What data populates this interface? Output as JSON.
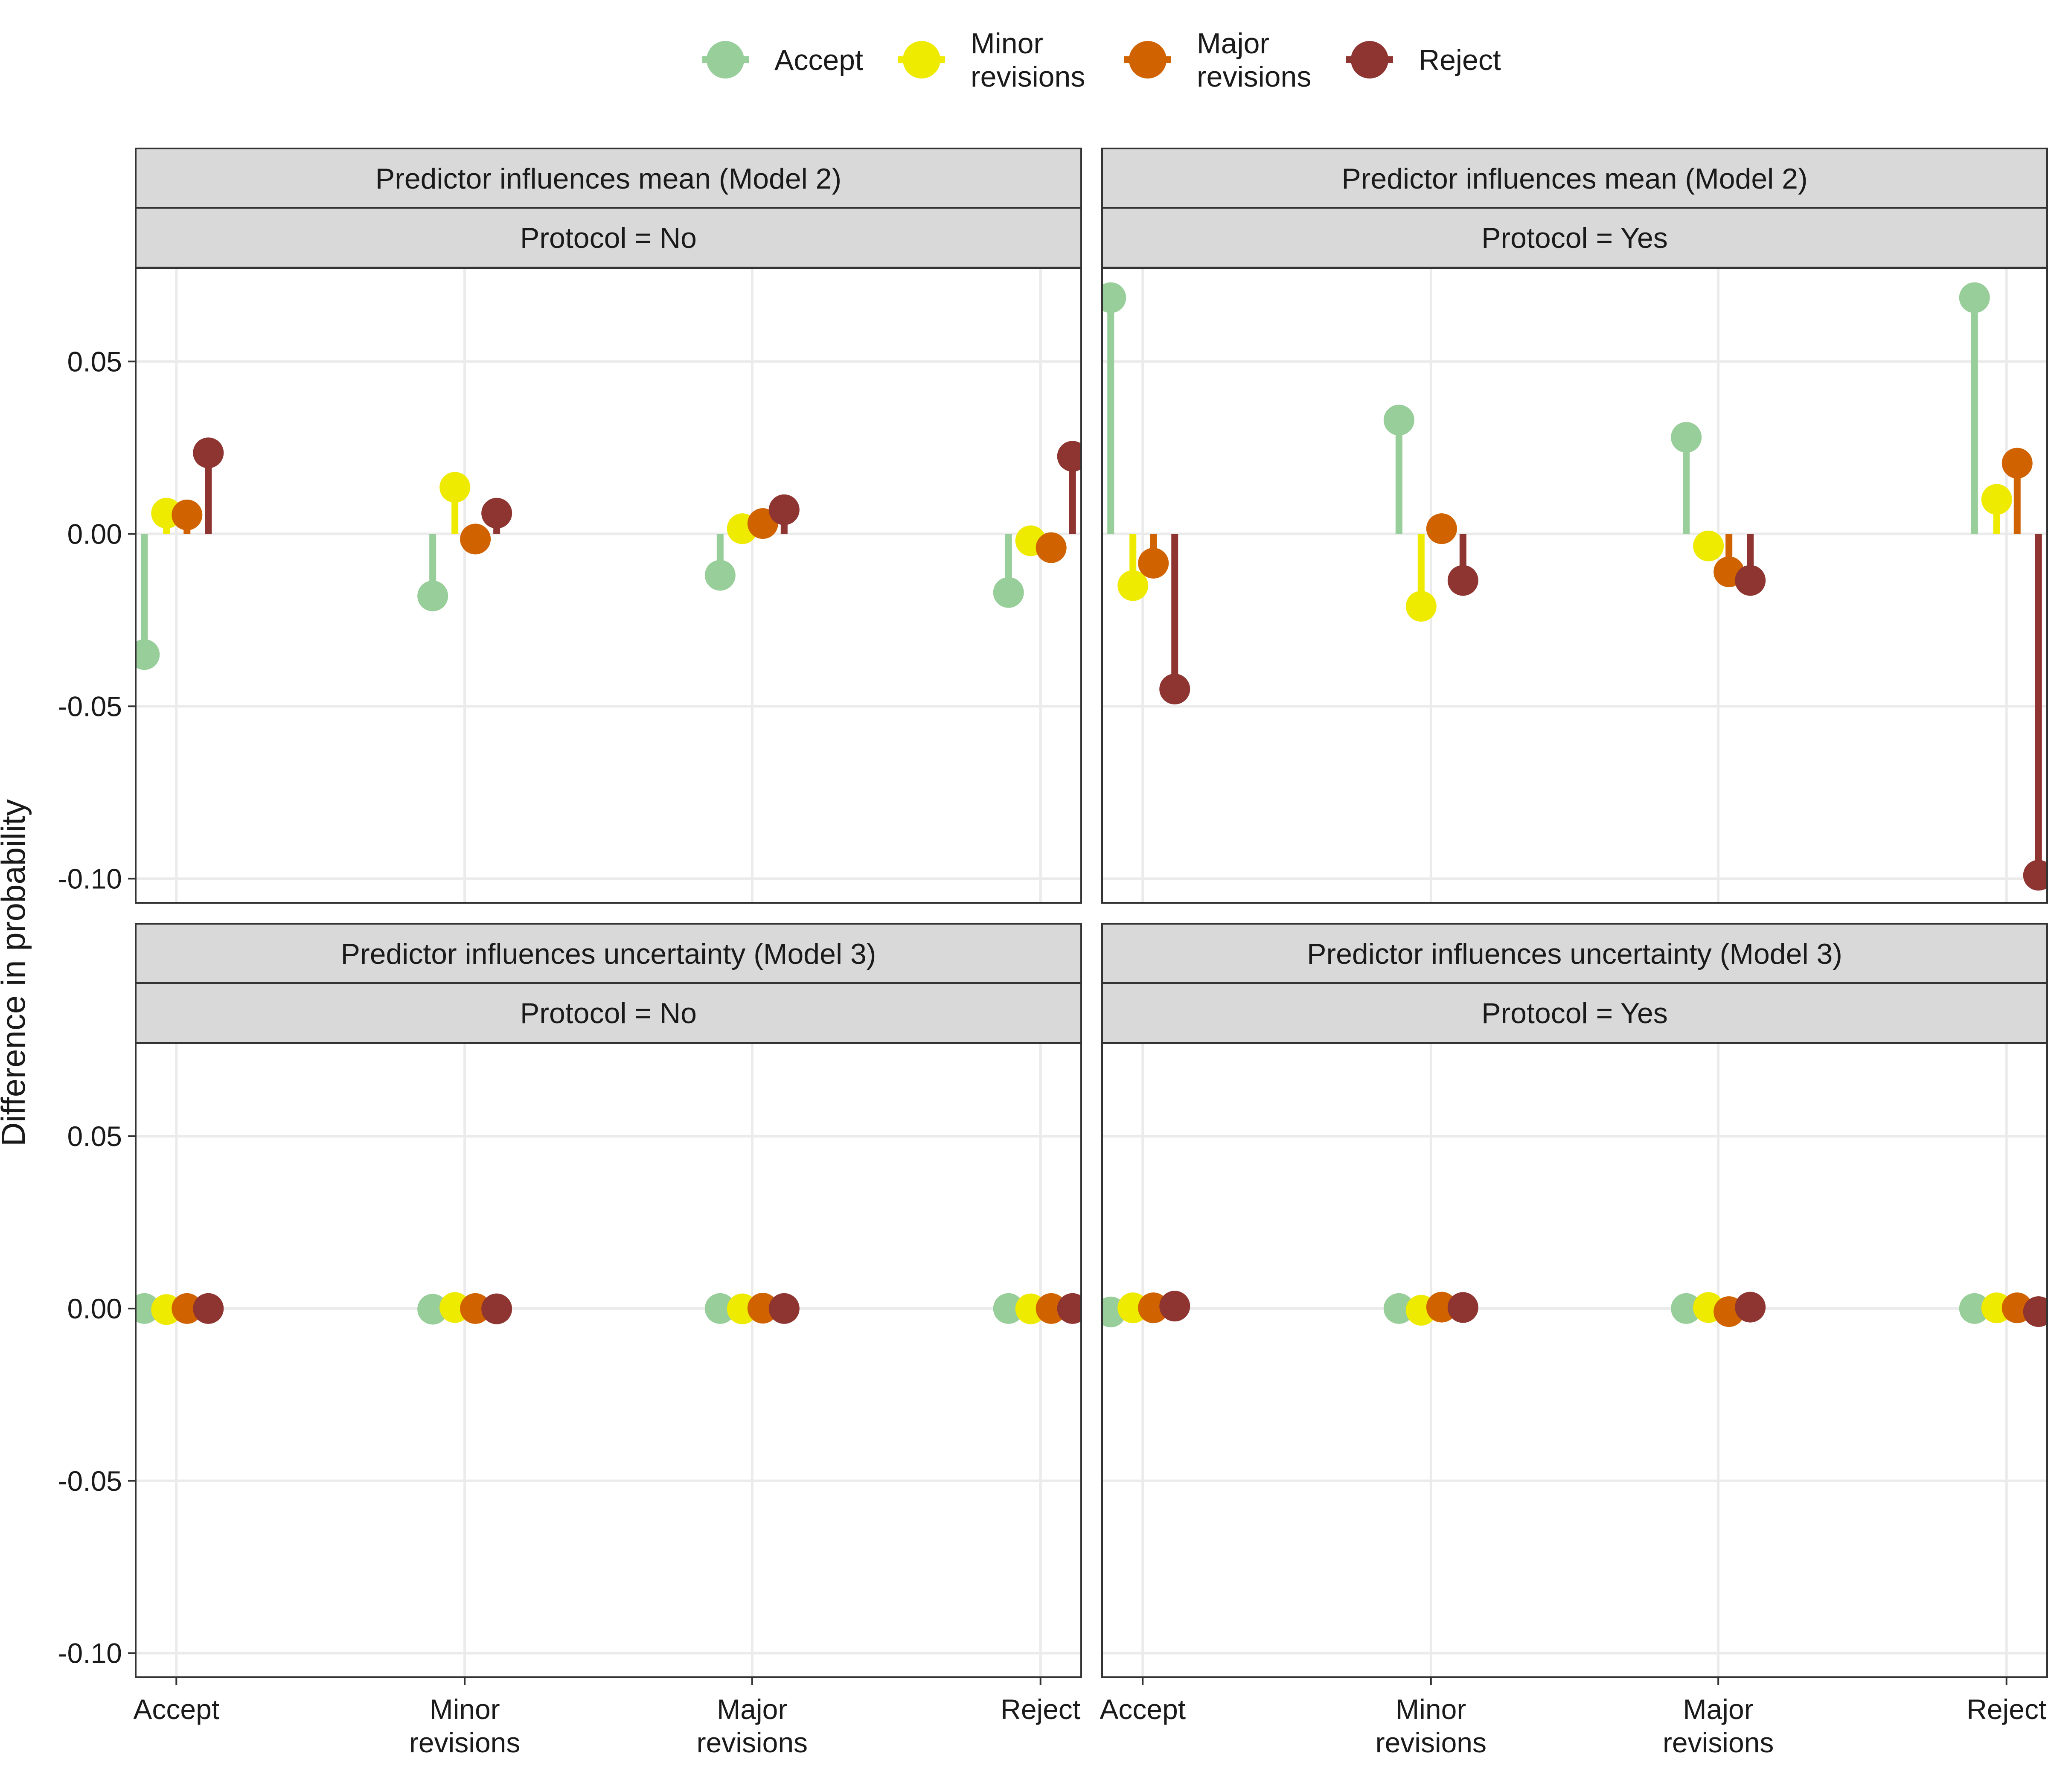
{
  "chart_data": {
    "type": "scatter",
    "subtype": "lollipop-faceted",
    "ylabel": "Difference in probability",
    "xlabel": "",
    "categories": [
      [
        "Accept"
      ],
      [
        "Minor",
        "revisions"
      ],
      [
        "Major",
        "revisions"
      ],
      [
        "Reject"
      ]
    ],
    "yticks": [
      "0.05",
      "0.00",
      "-0.05",
      "-0.10"
    ],
    "ytick_values": [
      0.05,
      0.0,
      -0.05,
      -0.1
    ],
    "ylim": [
      -0.107,
      0.077
    ],
    "grid": true,
    "legend": {
      "position": "top",
      "items": [
        {
          "label": [
            "Accept"
          ],
          "color": "#98CE99"
        },
        {
          "label": [
            "Minor",
            "revisions"
          ],
          "color": "#EEEA00"
        },
        {
          "label": [
            "Major",
            "revisions"
          ],
          "color": "#D16200"
        },
        {
          "label": [
            "Reject"
          ],
          "color": "#8E3431"
        }
      ]
    },
    "panels": [
      {
        "strip_top": "Predictor influences mean (Model 2)",
        "strip_bottom": "Protocol = No",
        "values": [
          [
            -0.035,
            0.006,
            0.0055,
            0.0235
          ],
          [
            -0.018,
            0.0135,
            -0.0015,
            0.006
          ],
          [
            -0.012,
            0.0015,
            0.003,
            0.007
          ],
          [
            -0.017,
            -0.002,
            -0.004,
            0.0225
          ]
        ]
      },
      {
        "strip_top": "Predictor influences mean (Model 2)",
        "strip_bottom": "Protocol = Yes",
        "values": [
          [
            0.0685,
            -0.015,
            -0.0085,
            -0.045
          ],
          [
            0.033,
            -0.021,
            0.0015,
            -0.0135
          ],
          [
            0.028,
            -0.0035,
            -0.011,
            -0.0135
          ],
          [
            0.0685,
            0.01,
            0.0205,
            -0.099
          ]
        ]
      },
      {
        "strip_top": "Predictor influences uncertainty (Model 3)",
        "strip_bottom": "Protocol = No",
        "values": [
          [
            0.0,
            -0.0003,
            0.0,
            0.0
          ],
          [
            -0.0002,
            0.0003,
            0.0,
            -0.0001
          ],
          [
            0.0,
            -0.0001,
            0.0001,
            0.0
          ],
          [
            0.0,
            -0.0001,
            0.0,
            0.0
          ]
        ]
      },
      {
        "strip_top": "Predictor influences uncertainty (Model 3)",
        "strip_bottom": "Protocol = Yes",
        "values": [
          [
            -0.001,
            0.0002,
            0.0002,
            0.0007
          ],
          [
            0.0,
            -0.0005,
            0.0004,
            0.0003
          ],
          [
            0.0,
            0.0003,
            -0.0009,
            0.0004
          ],
          [
            0.0,
            0.0002,
            0.0002,
            -0.0009
          ]
        ]
      }
    ]
  }
}
